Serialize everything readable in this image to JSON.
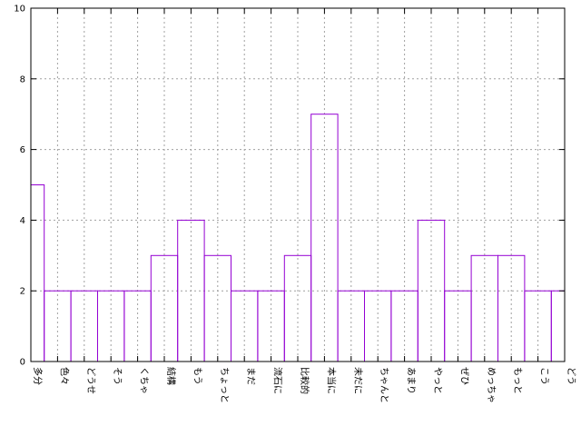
{
  "chart_data": {
    "type": "bar",
    "style": "histogram-steps",
    "title": "",
    "xlabel": "",
    "ylabel": "",
    "categories": [
      "多分",
      "色々",
      "どうせ",
      "そう",
      "くちゃ",
      "結構",
      "もう",
      "ちょっと",
      "まだ",
      "流石に",
      "比較的",
      "本当に",
      "未だに",
      "ちゃんと",
      "あまり",
      "やっと",
      "ぜひ",
      "めっちゃ",
      "もっと",
      "こう",
      "どう"
    ],
    "values": [
      5,
      2,
      2,
      2,
      2,
      3,
      4,
      3,
      2,
      2,
      3,
      7,
      2,
      2,
      2,
      4,
      2,
      3,
      3,
      2,
      2
    ],
    "ylim": [
      0,
      10
    ],
    "yticks": [
      0,
      2,
      4,
      6,
      8,
      10
    ],
    "grid": true,
    "legend": "none",
    "colors": {
      "series": "#9400d3",
      "grid": "#a0a0a0",
      "axis": "#000000"
    }
  }
}
